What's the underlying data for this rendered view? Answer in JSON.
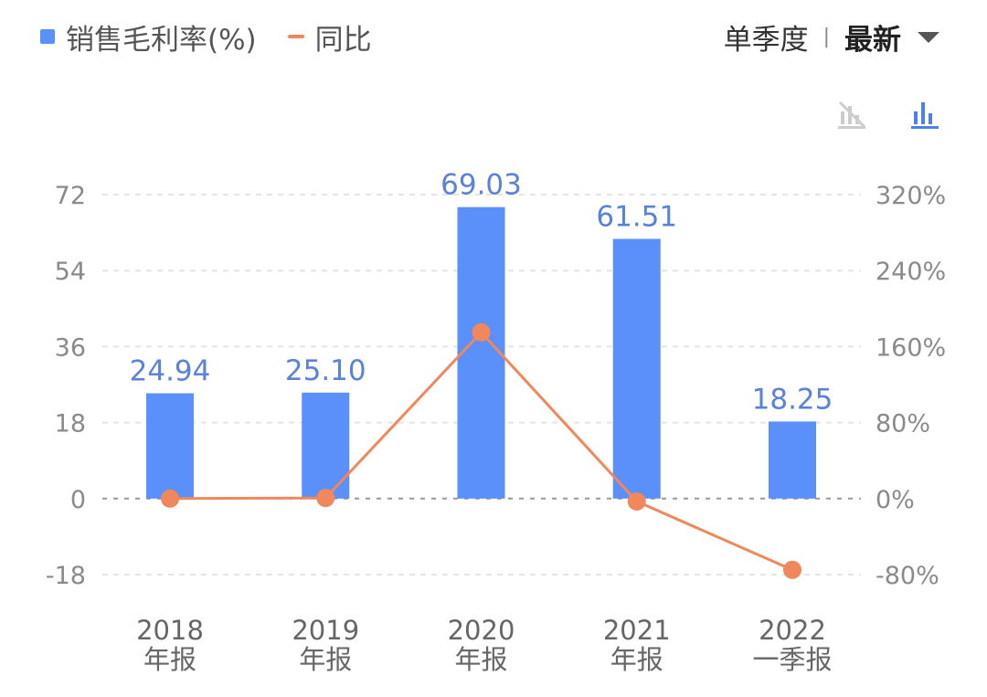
{
  "legend": {
    "bar_label": "销售毛利率(%)",
    "line_label": "同比"
  },
  "controls": {
    "period": "单季度",
    "separator": "|",
    "selected": "最新",
    "caret_icon": "caret-down-icon"
  },
  "view_toggle": {
    "line_icon": "line-chart-off-icon",
    "bar_icon": "bar-chart-icon"
  },
  "colors": {
    "bar": "#5b8ff9",
    "line": "#f0885b",
    "bar_label": "#5a82d8",
    "icon_active": "#4f7fe8",
    "icon_inactive": "#cccccc"
  },
  "chart_data": {
    "type": "bar",
    "categories": [
      "2018\n年报",
      "2019\n年报",
      "2020\n年报",
      "2021\n年报",
      "2022\n一季报"
    ],
    "series": [
      {
        "name": "销售毛利率(%)",
        "type": "bar",
        "axis": "left",
        "values": [
          24.94,
          25.1,
          69.03,
          61.51,
          18.25
        ],
        "labels": [
          "24.94",
          "25.10",
          "69.03",
          "61.51",
          "18.25"
        ]
      },
      {
        "name": "同比",
        "type": "line",
        "axis": "right",
        "values": [
          0,
          0.6,
          175,
          -3,
          -75
        ]
      }
    ],
    "left_axis": {
      "min": -18,
      "max": 72,
      "ticks": [
        72,
        54,
        36,
        18,
        0,
        -18
      ],
      "tick_labels": [
        "72",
        "54",
        "36",
        "18",
        "0",
        "-18"
      ]
    },
    "right_axis": {
      "min": -80,
      "max": 320,
      "ticks": [
        320,
        240,
        160,
        80,
        0,
        -80
      ],
      "tick_labels": [
        "320%",
        "240%",
        "160%",
        "80%",
        "0%",
        "-80%"
      ]
    },
    "grid": true,
    "legend_position": "top-left"
  }
}
